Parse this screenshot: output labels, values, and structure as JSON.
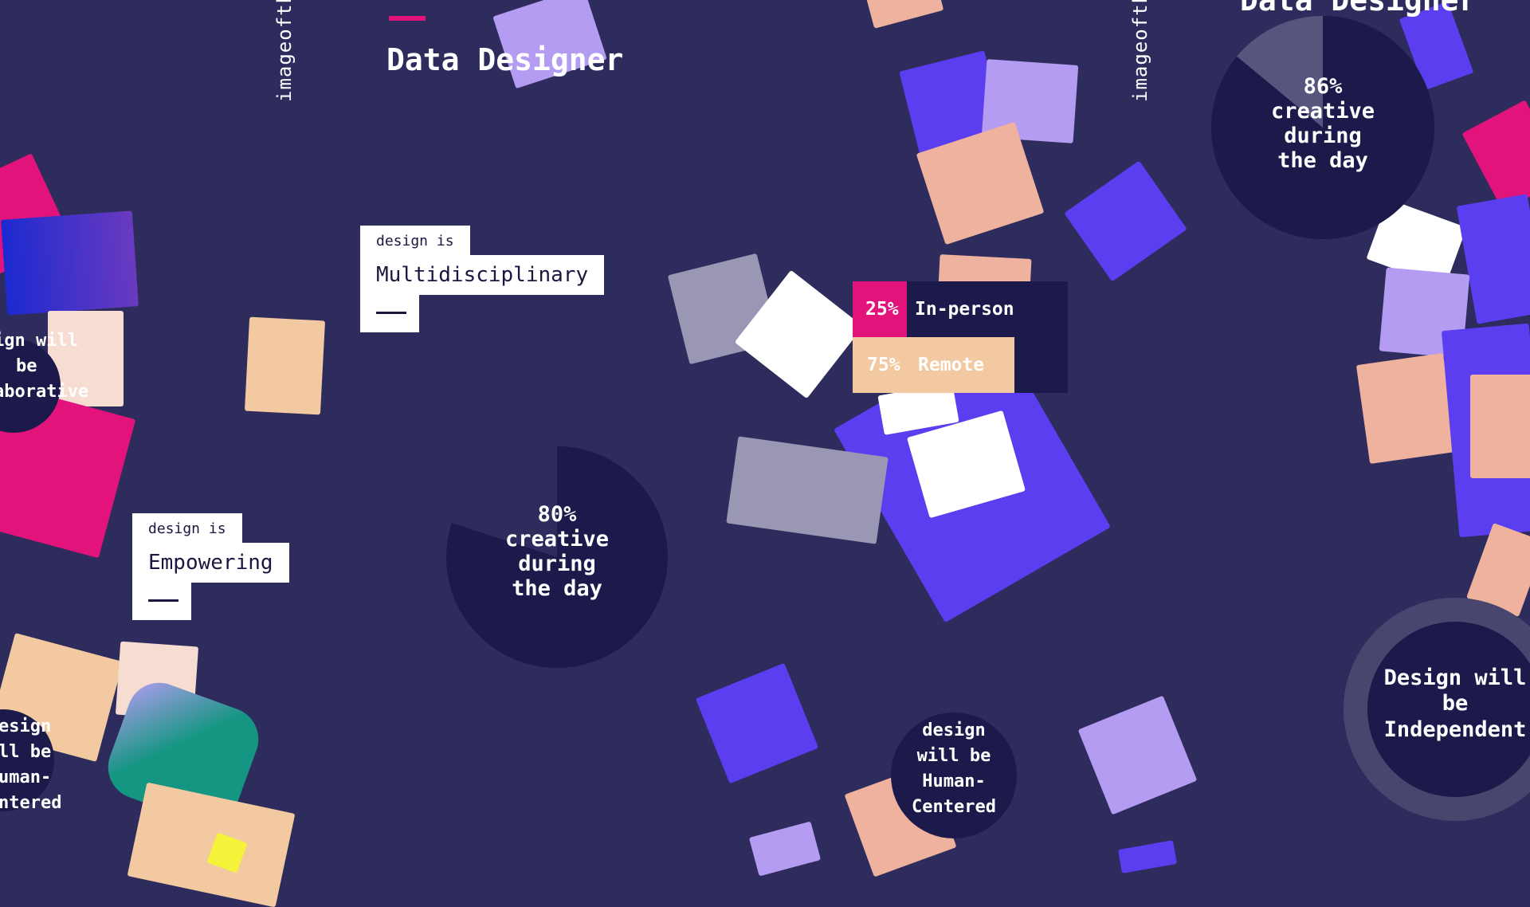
{
  "watermarks": [
    "imageofth",
    "imageofth"
  ],
  "titles": {
    "main": "Data Designer",
    "corner": "Data Designer"
  },
  "cards": [
    {
      "tag": "design is",
      "label": "Multidisciplinary"
    },
    {
      "tag": "design is",
      "label": "Empowering"
    }
  ],
  "donuts": [
    {
      "percent": "80%",
      "line1": "creative",
      "line2": "during",
      "line3": "the day",
      "value": 80
    },
    {
      "percent": "86%",
      "line1": "creative",
      "line2": "during",
      "line3": "the day",
      "value": 86
    }
  ],
  "work_split": {
    "in_person": {
      "percent": "25%",
      "label": "In-person",
      "value": 25
    },
    "remote": {
      "percent": "75%",
      "label": "Remote",
      "value": 75
    }
  },
  "statements": {
    "independent": {
      "line1": "Design will",
      "line2": "be",
      "line3": "Independent"
    },
    "human_centered": {
      "line1": "design",
      "line2": "will be",
      "line3": "Human-",
      "line4": "Centered"
    },
    "left_collab": {
      "line1": "ign will",
      "line2": "be",
      "line3": "aborative"
    },
    "left_human": {
      "line1": "esign",
      "line2": "ll be",
      "line3": "uman-",
      "line4": "ntered"
    }
  },
  "colors": {
    "background": "#2e2c5d",
    "accent_pink": "#e3137c",
    "violet": "#5b3ef0",
    "lavender": "#b59cf3",
    "peach": "#eeb29e",
    "sand": "#f2c9a0",
    "gray": "#9a97b4",
    "teal": "#159682",
    "navy": "#1a1840"
  }
}
